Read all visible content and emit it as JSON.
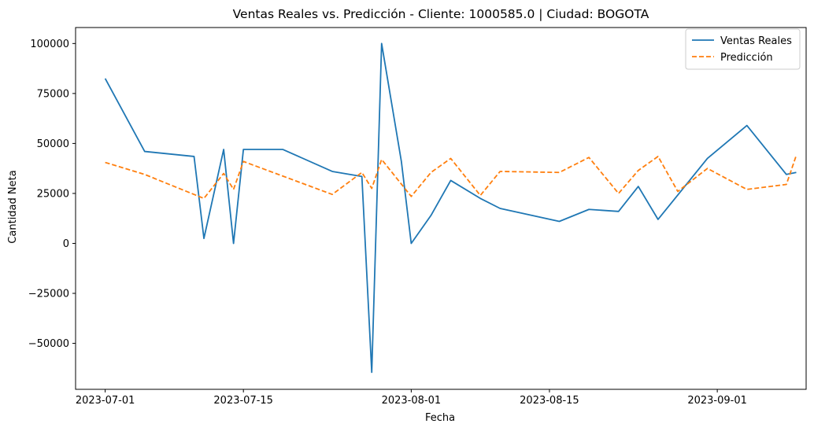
{
  "chart_data": {
    "type": "line",
    "title": "Ventas Reales vs. Predicción - Cliente: 1000585.0 | Ciudad: BOGOTA",
    "xlabel": "Fecha",
    "ylabel": "Cantidad Neta",
    "x_axis": "date",
    "xlim": [
      "2023-06-28",
      "2023-09-10"
    ],
    "ylim": [
      -73000,
      108000
    ],
    "x_ticks": [
      "2023-07-01",
      "2023-07-15",
      "2023-08-01",
      "2023-08-15",
      "2023-09-01"
    ],
    "y_ticks": [
      100000,
      75000,
      50000,
      25000,
      0,
      -25000,
      -50000
    ],
    "y_tick_labels": [
      "100000",
      "75000",
      "50000",
      "25000",
      "0",
      "−25000",
      "−50000"
    ],
    "grid": false,
    "legend": "top-right",
    "series": [
      {
        "name": "Ventas Reales",
        "color": "#1f77b4",
        "style": "solid",
        "points": [
          [
            "2023-07-01",
            82500
          ],
          [
            "2023-07-05",
            46000
          ],
          [
            "2023-07-10",
            43500
          ],
          [
            "2023-07-11",
            2500
          ],
          [
            "2023-07-13",
            47000
          ],
          [
            "2023-07-14",
            0
          ],
          [
            "2023-07-15",
            47000
          ],
          [
            "2023-07-19",
            47000
          ],
          [
            "2023-07-24",
            36000
          ],
          [
            "2023-07-27",
            33500
          ],
          [
            "2023-07-28",
            -64500
          ],
          [
            "2023-07-29",
            100000
          ],
          [
            "2023-07-31",
            41000
          ],
          [
            "2023-08-01",
            0
          ],
          [
            "2023-08-03",
            14000
          ],
          [
            "2023-08-05",
            31500
          ],
          [
            "2023-08-08",
            22500
          ],
          [
            "2023-08-10",
            17500
          ],
          [
            "2023-08-16",
            11000
          ],
          [
            "2023-08-19",
            17000
          ],
          [
            "2023-08-22",
            16000
          ],
          [
            "2023-08-24",
            28500
          ],
          [
            "2023-08-26",
            12000
          ],
          [
            "2023-08-31",
            42500
          ],
          [
            "2023-09-04",
            59000
          ],
          [
            "2023-09-08",
            34500
          ],
          [
            "2023-09-09",
            35500
          ]
        ]
      },
      {
        "name": "Predicción",
        "color": "#ff7f0e",
        "style": "dashed",
        "points": [
          [
            "2023-07-01",
            40500
          ],
          [
            "2023-07-05",
            34500
          ],
          [
            "2023-07-11",
            22500
          ],
          [
            "2023-07-13",
            35000
          ],
          [
            "2023-07-14",
            27000
          ],
          [
            "2023-07-15",
            41000
          ],
          [
            "2023-07-24",
            24500
          ],
          [
            "2023-07-27",
            35500
          ],
          [
            "2023-07-28",
            27500
          ],
          [
            "2023-07-29",
            42000
          ],
          [
            "2023-08-01",
            23500
          ],
          [
            "2023-08-03",
            35500
          ],
          [
            "2023-08-05",
            42500
          ],
          [
            "2023-08-08",
            24000
          ],
          [
            "2023-08-10",
            36000
          ],
          [
            "2023-08-16",
            35500
          ],
          [
            "2023-08-19",
            43000
          ],
          [
            "2023-08-22",
            25000
          ],
          [
            "2023-08-24",
            36500
          ],
          [
            "2023-08-26",
            43500
          ],
          [
            "2023-08-28",
            26000
          ],
          [
            "2023-08-31",
            37500
          ],
          [
            "2023-09-04",
            27000
          ],
          [
            "2023-09-08",
            29500
          ],
          [
            "2023-09-09",
            44000
          ]
        ]
      }
    ]
  }
}
